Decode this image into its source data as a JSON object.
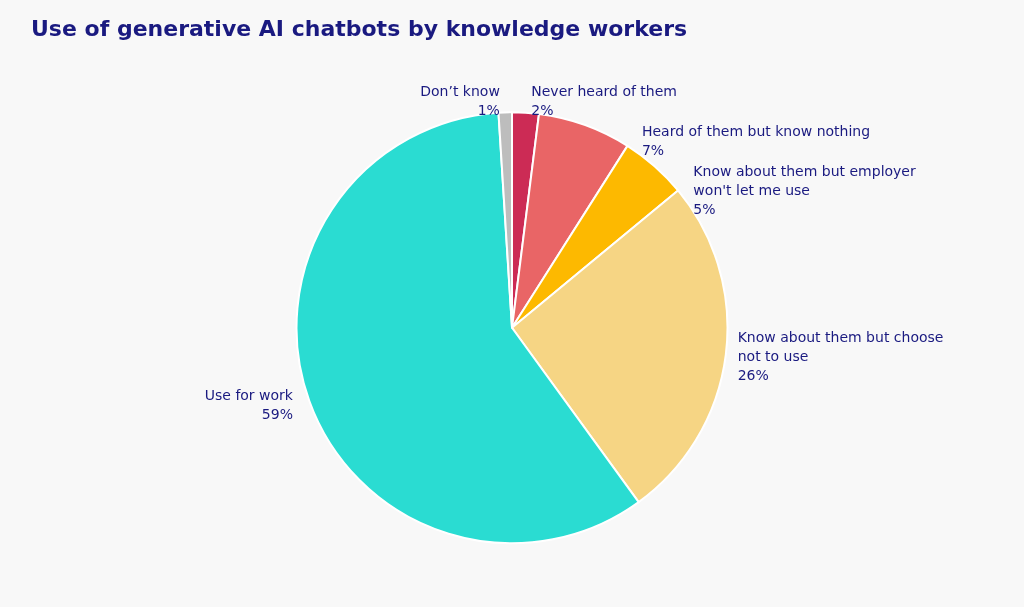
{
  "chart_data": {
    "type": "pie",
    "title": "Use of generative AI chatbots by knowledge workers",
    "categories": [
      "Never heard of them",
      "Heard of them but know nothing",
      "Know about them but employer won't let me use",
      "Know about them but choose not to use",
      "Use for work",
      "Don’t know"
    ],
    "values": [
      2,
      7,
      5,
      26,
      59,
      1
    ],
    "value_labels": [
      "2%",
      "7%",
      "5%",
      "26%",
      "59%",
      "1%"
    ],
    "colors": [
      "#cc2b55",
      "#e96566",
      "#fdb900",
      "#f6d584",
      "#2adcd2",
      "#bdbdbd"
    ],
    "legend": false
  }
}
